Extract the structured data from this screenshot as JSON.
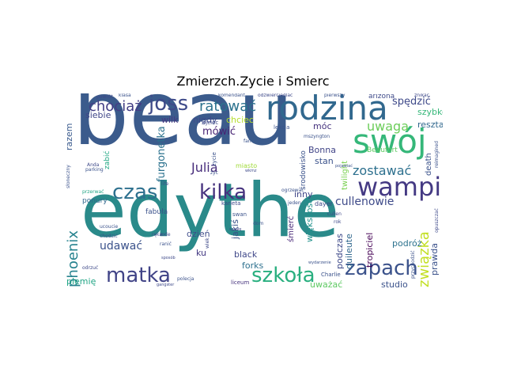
{
  "title": "Zmierzch.Zycie i Smierc",
  "words": [
    {
      "text": "beau",
      "color": "#3b5b8c"
    },
    {
      "text": "edythe",
      "color": "#2a8a8a"
    },
    {
      "text": "rodzina",
      "color": "#31688e"
    },
    {
      "text": "swój",
      "color": "#35b779"
    },
    {
      "text": "wampir",
      "color": "#443983"
    },
    {
      "text": "joss",
      "color": "#3e4a89"
    },
    {
      "text": "chociaż",
      "color": "#433e85"
    },
    {
      "text": "ratować",
      "color": "#2c728e"
    },
    {
      "text": "kilka",
      "color": "#46327e"
    },
    {
      "text": "czas",
      "color": "#2d708e"
    },
    {
      "text": "matka",
      "color": "#414487"
    },
    {
      "text": "szkoła",
      "color": "#29af7f"
    },
    {
      "text": "zapach",
      "color": "#3b528b"
    },
    {
      "text": "związka",
      "color": "#c2df23"
    },
    {
      "text": "phoenix",
      "color": "#26828e"
    },
    {
      "text": "uwaga",
      "color": "#6ccd5a"
    },
    {
      "text": "zostawać",
      "color": "#2d708e"
    },
    {
      "text": "cullenowie",
      "color": "#3e4a89"
    },
    {
      "text": "Julia",
      "color": "#472d7b"
    },
    {
      "text": "udawać",
      "color": "#3b528b"
    },
    {
      "text": "furgonetka",
      "color": "#2c728e"
    },
    {
      "text": "mówić",
      "color": "#482374"
    },
    {
      "text": "spędzić",
      "color": "#3e4989"
    },
    {
      "text": "szybko",
      "color": "#35b779"
    },
    {
      "text": "reszta",
      "color": "#31688e"
    },
    {
      "text": "Bonna",
      "color": "#414487"
    },
    {
      "text": "stan",
      "color": "#3b528b"
    },
    {
      "text": "móc",
      "color": "#46337e"
    },
    {
      "text": "nigdy",
      "color": "#3e4a89"
    },
    {
      "text": "chciec",
      "color": "#b5de2b"
    },
    {
      "text": "wilk",
      "color": "#453882"
    },
    {
      "text": "siebie",
      "color": "#404688"
    },
    {
      "text": "razem",
      "color": "#38598c"
    },
    {
      "text": "większość",
      "color": "#21918c"
    },
    {
      "text": "jakiś",
      "color": "#3b528b"
    },
    {
      "text": "black",
      "color": "#3f4788"
    },
    {
      "text": "forks",
      "color": "#2d708e"
    },
    {
      "text": "dzień",
      "color": "#3e4c8a"
    },
    {
      "text": "inny",
      "color": "#404688"
    },
    {
      "text": "podróż",
      "color": "#2c728e"
    },
    {
      "text": "uważać",
      "color": "#5ec962"
    },
    {
      "text": "studio",
      "color": "#3b528b"
    },
    {
      "text": "prawda",
      "color": "#3b528b"
    },
    {
      "text": "tropiciel",
      "color": "#440154"
    },
    {
      "text": "podczas",
      "color": "#3e4989"
    },
    {
      "text": "quileute",
      "color": "#31688e"
    },
    {
      "text": "plemię",
      "color": "#21a585"
    },
    {
      "text": "twilight",
      "color": "#7ad151"
    },
    {
      "text": "zabić",
      "color": "#22a884"
    },
    {
      "text": "ku",
      "color": "#443983"
    },
    {
      "text": "śmierć",
      "color": "#482878"
    },
    {
      "text": "środowisko",
      "color": "#3b528b"
    },
    {
      "text": "ponury",
      "color": "#31688e"
    },
    {
      "text": "fabuła",
      "color": "#3b528b"
    },
    {
      "text": "arizona",
      "color": "#3e4a89"
    },
    {
      "text": "death",
      "color": "#3b528b"
    },
    {
      "text": "Beaufort",
      "color": "#5ec962"
    },
    {
      "text": "dayer",
      "color": "#3e4989"
    },
    {
      "text": "Charlie",
      "color": "#3b528b"
    },
    {
      "text": "liceum",
      "color": "#46337e"
    },
    {
      "text": "karieta",
      "color": "#3e4989"
    },
    {
      "text": "swan",
      "color": "#3b528b"
    },
    {
      "text": "ojciec",
      "color": "#3e4989"
    },
    {
      "text": "lekcja",
      "color": "#3b528b"
    },
    {
      "text": "komendant",
      "color": "#3b528b"
    },
    {
      "text": "odzwierciedlać",
      "color": "#3e4989"
    },
    {
      "text": "pierwszy",
      "color": "#3b528b"
    },
    {
      "text": "znikać",
      "color": "#3e4989"
    },
    {
      "text": "klasa",
      "color": "#3b528b"
    },
    {
      "text": "powrót",
      "color": "#3e4989"
    },
    {
      "text": "ogrzewać",
      "color": "#3b528b"
    },
    {
      "text": "cullen",
      "color": "#3e4989"
    },
    {
      "text": "jeden",
      "color": "#3b528b"
    },
    {
      "text": "miasto",
      "color": "#a0da39"
    },
    {
      "text": "życie",
      "color": "#3b528b"
    },
    {
      "text": "życ",
      "color": "#3b528b"
    },
    {
      "text": "Anda",
      "color": "#3e4989"
    },
    {
      "text": "przerwać",
      "color": "#21a585"
    },
    {
      "text": "ucoucie",
      "color": "#3b528b"
    },
    {
      "text": "wydarzenie",
      "color": "#3b528b"
    },
    {
      "text": "odrzuć",
      "color": "#3e4989"
    },
    {
      "text": "parking",
      "color": "#3b528b"
    },
    {
      "text": "rok",
      "color": "#3e4989"
    },
    {
      "text": "przychodzić",
      "color": "#3b528b"
    },
    {
      "text": "ręka",
      "color": "#3e4989"
    },
    {
      "text": "polecja",
      "color": "#3b528b"
    },
    {
      "text": "gangster",
      "color": "#3e4989"
    },
    {
      "text": "reimagined",
      "color": "#3b528b"
    },
    {
      "text": "opuszczać",
      "color": "#3e4989"
    },
    {
      "text": "słoneczny",
      "color": "#3b528b"
    },
    {
      "text": "life",
      "color": "#3e4989"
    },
    {
      "text": "fan",
      "color": "#3b528b"
    },
    {
      "text": "wiek",
      "color": "#3e4989"
    },
    {
      "text": "chodzić",
      "color": "#3b528b"
    },
    {
      "text": "szkołę",
      "color": "#3e4989"
    },
    {
      "text": "mszyngton",
      "color": "#3b528b"
    },
    {
      "text": "wkmz",
      "color": "#3e4989"
    },
    {
      "text": "dom",
      "color": "#3b528b"
    },
    {
      "text": "rode",
      "color": "#3e4989"
    },
    {
      "text": "ranić",
      "color": "#3b528b"
    },
    {
      "text": "sposób",
      "color": "#3e4989"
    },
    {
      "text": "pojawiać",
      "color": "#3b528b"
    }
  ]
}
